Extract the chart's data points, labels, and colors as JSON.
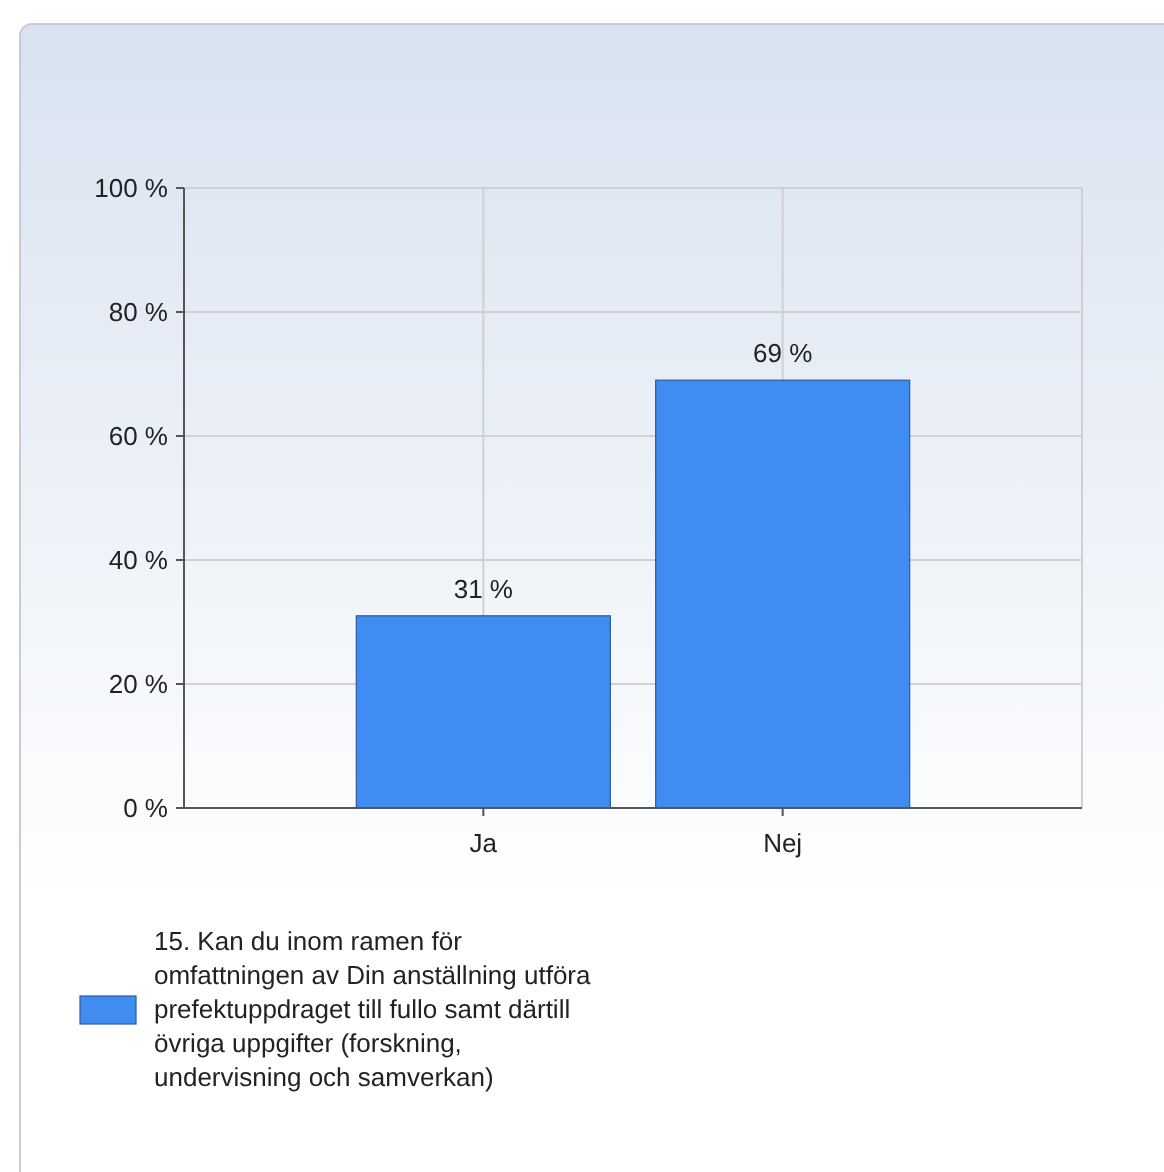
{
  "chart_data": {
    "type": "bar",
    "categories": [
      "Ja",
      "Nej"
    ],
    "series": [
      {
        "name": "15. Kan du inom ramen för omfattningen av Din anställning utföra prefektuppdraget till fullo samt därtill övriga uppgifter (forskning, undervisning och samverkan)",
        "color": "#418cf0",
        "values": [
          31,
          69
        ],
        "value_labels": [
          "31 %",
          "69 %"
        ]
      }
    ],
    "ylim": [
      0,
      100
    ],
    "yticks": [
      {
        "value": 0,
        "label": "0 %"
      },
      {
        "value": 20,
        "label": "20 %"
      },
      {
        "value": 40,
        "label": "40 %"
      },
      {
        "value": 60,
        "label": "60 %"
      },
      {
        "value": 80,
        "label": "80 %"
      },
      {
        "value": 100,
        "label": "100 %"
      }
    ],
    "grid": true,
    "legend": "bottom"
  }
}
